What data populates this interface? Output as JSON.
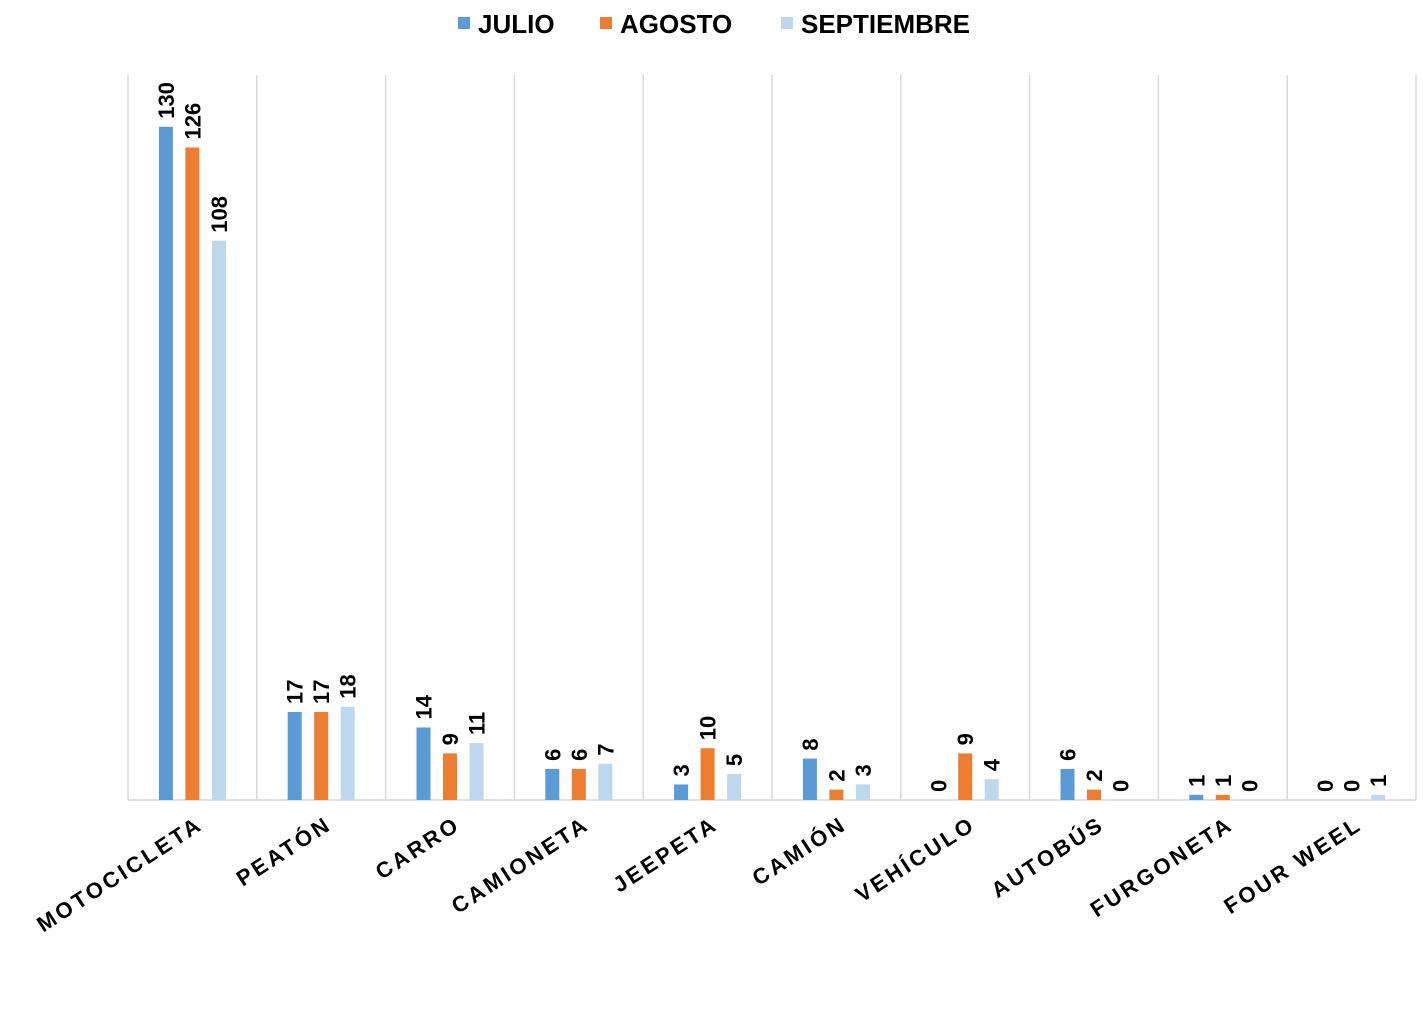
{
  "chart_data": {
    "type": "bar",
    "categories": [
      "MOTOCICLETA",
      "PEATÓN",
      "CARRO",
      "CAMIONETA",
      "JEEPETA",
      "CAMIÓN",
      "VEHÍCULO",
      "AUTOBÚS",
      "FURGONETA",
      "FOUR WEEL"
    ],
    "series": [
      {
        "name": "JULIO",
        "color": "#5b9bd5",
        "values": [
          130,
          17,
          14,
          6,
          3,
          8,
          0,
          6,
          1,
          0
        ]
      },
      {
        "name": "AGOSTO",
        "color": "#ed7d31",
        "values": [
          126,
          17,
          9,
          6,
          10,
          2,
          9,
          2,
          1,
          0
        ]
      },
      {
        "name": "SEPTIEMBRE",
        "color": "#bdd7ee",
        "values": [
          108,
          18,
          11,
          7,
          5,
          3,
          4,
          0,
          0,
          1
        ]
      }
    ],
    "ylim": [
      0,
      140
    ],
    "legend": "top"
  }
}
